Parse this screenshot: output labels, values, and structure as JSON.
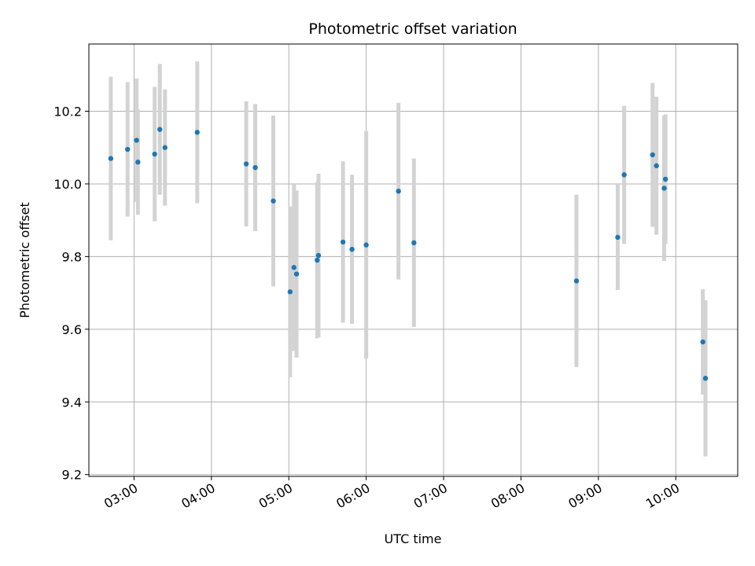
{
  "chart_data": {
    "type": "scatter",
    "title": "Photometric offset variation",
    "xlabel": "UTC time",
    "ylabel": "Photometric offset",
    "grid": true,
    "x_axis": "time",
    "xlim": [
      "02:25",
      "10:48"
    ],
    "ylim": [
      9.195,
      10.385
    ],
    "xticks": [
      "03:00",
      "04:00",
      "05:00",
      "06:00",
      "07:00",
      "08:00",
      "09:00",
      "10:00"
    ],
    "yticks": [
      "9.2",
      "9.4",
      "9.6",
      "9.8",
      "10.0",
      "10.2"
    ],
    "colors": {
      "point": "#1f77b4",
      "errorbar": "#d3d3d3",
      "grid": "#b0b0b0"
    },
    "points": [
      {
        "x": "02:42",
        "y": 10.07,
        "yerr": 0.225
      },
      {
        "x": "02:55",
        "y": 10.095,
        "yerr": 0.185
      },
      {
        "x": "03:02",
        "y": 10.12,
        "yerr": 0.17
      },
      {
        "x": "03:03",
        "y": 10.06,
        "yerr": 0.145
      },
      {
        "x": "03:16",
        "y": 10.082,
        "yerr": 0.185
      },
      {
        "x": "03:20",
        "y": 10.15,
        "yerr": 0.18
      },
      {
        "x": "03:24",
        "y": 10.1,
        "yerr": 0.16
      },
      {
        "x": "03:49",
        "y": 10.142,
        "yerr": 0.195
      },
      {
        "x": "04:27",
        "y": 10.055,
        "yerr": 0.172
      },
      {
        "x": "04:34",
        "y": 10.045,
        "yerr": 0.175
      },
      {
        "x": "04:48",
        "y": 9.953,
        "yerr": 0.235
      },
      {
        "x": "05:01",
        "y": 9.703,
        "yerr": 0.235
      },
      {
        "x": "05:04",
        "y": 9.77,
        "yerr": 0.23
      },
      {
        "x": "05:06",
        "y": 9.752,
        "yerr": 0.23
      },
      {
        "x": "05:22",
        "y": 9.79,
        "yerr": 0.215
      },
      {
        "x": "05:23",
        "y": 9.803,
        "yerr": 0.225
      },
      {
        "x": "05:42",
        "y": 9.84,
        "yerr": 0.222
      },
      {
        "x": "05:49",
        "y": 9.82,
        "yerr": 0.205
      },
      {
        "x": "06:00",
        "y": 9.832,
        "yerr": 0.313
      },
      {
        "x": "06:25",
        "y": 9.98,
        "yerr": 0.243
      },
      {
        "x": "06:37",
        "y": 9.838,
        "yerr": 0.232
      },
      {
        "x": "08:43",
        "y": 9.733,
        "yerr": 0.237
      },
      {
        "x": "09:15",
        "y": 9.853,
        "yerr": 0.145
      },
      {
        "x": "09:20",
        "y": 10.025,
        "yerr": 0.19
      },
      {
        "x": "09:42",
        "y": 10.08,
        "yerr": 0.198
      },
      {
        "x": "09:45",
        "y": 10.05,
        "yerr": 0.19
      },
      {
        "x": "09:51",
        "y": 9.988,
        "yerr": 0.2
      },
      {
        "x": "09:52",
        "y": 10.013,
        "yerr": 0.178
      },
      {
        "x": "10:21",
        "y": 9.565,
        "yerr": 0.145
      },
      {
        "x": "10:23",
        "y": 9.465,
        "yerr": 0.215
      }
    ]
  }
}
